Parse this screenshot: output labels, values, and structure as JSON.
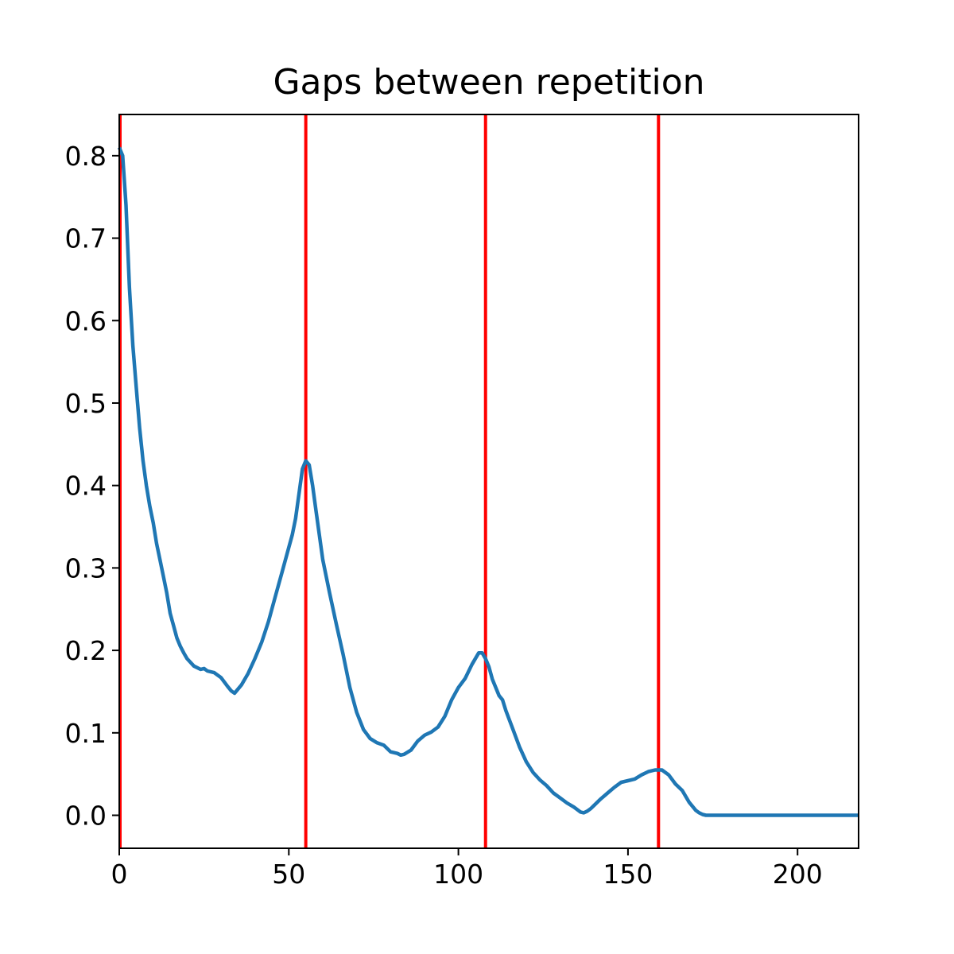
{
  "chart_data": {
    "type": "line",
    "title": "Gaps between repetition",
    "xlabel": "",
    "ylabel": "",
    "xlim": [
      0,
      218
    ],
    "ylim": [
      -0.04,
      0.85
    ],
    "grid": false,
    "xticks": [
      0,
      50,
      100,
      150,
      200
    ],
    "xtick_labels": [
      "0",
      "50",
      "100",
      "150",
      "200"
    ],
    "yticks": [
      0.0,
      0.1,
      0.2,
      0.3,
      0.4,
      0.5,
      0.6,
      0.7,
      0.8
    ],
    "ytick_labels": [
      "0.0",
      "0.1",
      "0.2",
      "0.3",
      "0.4",
      "0.5",
      "0.6",
      "0.7",
      "0.8"
    ],
    "series": [
      {
        "color": "#1f77b4",
        "x": [
          0,
          1,
          2,
          3,
          4,
          5,
          6,
          7,
          8,
          9,
          10,
          11,
          12,
          13,
          14,
          15,
          16,
          17,
          18,
          19,
          20,
          22,
          24,
          25,
          26,
          28,
          30,
          32,
          33,
          34,
          36,
          38,
          40,
          42,
          44,
          46,
          48,
          50,
          51,
          52,
          53,
          54,
          55,
          56,
          57,
          58,
          59,
          60,
          62,
          64,
          66,
          68,
          70,
          72,
          74,
          76,
          78,
          80,
          82,
          83,
          84,
          86,
          88,
          90,
          92,
          94,
          96,
          98,
          100,
          102,
          104,
          106,
          107,
          108,
          109,
          110,
          112,
          113,
          114,
          116,
          118,
          120,
          122,
          124,
          126,
          128,
          130,
          132,
          134,
          136,
          137,
          138,
          139,
          140,
          142,
          144,
          146,
          148,
          150,
          152,
          154,
          156,
          158,
          160,
          162,
          164,
          166,
          168,
          170,
          171,
          172,
          173,
          174,
          175,
          180,
          190,
          200,
          210,
          218
        ],
        "y": [
          0.81,
          0.8,
          0.74,
          0.64,
          0.57,
          0.52,
          0.47,
          0.43,
          0.4,
          0.375,
          0.355,
          0.33,
          0.31,
          0.29,
          0.27,
          0.245,
          0.23,
          0.215,
          0.205,
          0.197,
          0.19,
          0.181,
          0.177,
          0.178,
          0.175,
          0.173,
          0.167,
          0.156,
          0.151,
          0.148,
          0.158,
          0.172,
          0.19,
          0.21,
          0.235,
          0.265,
          0.295,
          0.325,
          0.34,
          0.36,
          0.39,
          0.42,
          0.43,
          0.425,
          0.4,
          0.37,
          0.34,
          0.31,
          0.27,
          0.232,
          0.195,
          0.155,
          0.125,
          0.104,
          0.093,
          0.088,
          0.085,
          0.077,
          0.075,
          0.073,
          0.074,
          0.079,
          0.09,
          0.097,
          0.101,
          0.107,
          0.12,
          0.14,
          0.155,
          0.166,
          0.183,
          0.197,
          0.197,
          0.19,
          0.18,
          0.165,
          0.145,
          0.14,
          0.127,
          0.105,
          0.083,
          0.065,
          0.052,
          0.043,
          0.036,
          0.027,
          0.021,
          0.015,
          0.01,
          0.004,
          0.003,
          0.005,
          0.008,
          0.012,
          0.02,
          0.027,
          0.034,
          0.04,
          0.042,
          0.044,
          0.049,
          0.053,
          0.055,
          0.055,
          0.049,
          0.038,
          0.03,
          0.016,
          0.006,
          0.003,
          0.001,
          0.0,
          0.0,
          0.0,
          0.0,
          0.0,
          0.0,
          0.0,
          0.0
        ]
      }
    ],
    "vlines": {
      "color": "#ff0000",
      "x": [
        0,
        55,
        108,
        159
      ]
    }
  }
}
